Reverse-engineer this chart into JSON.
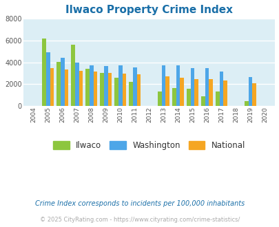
{
  "title": "Ilwaco Property Crime Index",
  "title_color": "#1a6fa8",
  "years": [
    2004,
    2005,
    2006,
    2007,
    2008,
    2009,
    2010,
    2011,
    2012,
    2013,
    2014,
    2015,
    2016,
    2017,
    2018,
    2019,
    2020
  ],
  "ilwaco": [
    null,
    6200,
    4050,
    5600,
    3400,
    3050,
    2600,
    2200,
    null,
    1350,
    1650,
    1550,
    900,
    1300,
    null,
    430,
    null
  ],
  "washington": [
    null,
    4900,
    4450,
    4000,
    3750,
    3650,
    3750,
    3550,
    null,
    3750,
    3750,
    3450,
    3500,
    3150,
    null,
    2680,
    null
  ],
  "national": [
    null,
    3450,
    3350,
    3250,
    3150,
    3050,
    2950,
    2900,
    null,
    2700,
    2600,
    2480,
    2480,
    2350,
    null,
    2100,
    null
  ],
  "ilwaco_color": "#8dc63f",
  "washington_color": "#4da6e8",
  "national_color": "#f5a623",
  "bg_color": "#dceef5",
  "grid_color": "#ffffff",
  "ylim": [
    0,
    8000
  ],
  "yticks": [
    0,
    2000,
    4000,
    6000,
    8000
  ],
  "bar_width": 0.27,
  "legend_labels": [
    "Ilwaco",
    "Washington",
    "National"
  ],
  "footnote": "Crime Index corresponds to incidents per 100,000 inhabitants",
  "footnote2": "© 2025 CityRating.com - https://www.cityrating.com/crime-statistics/",
  "footnote_color": "#1a6fa8",
  "footnote2_color": "#aaaaaa"
}
